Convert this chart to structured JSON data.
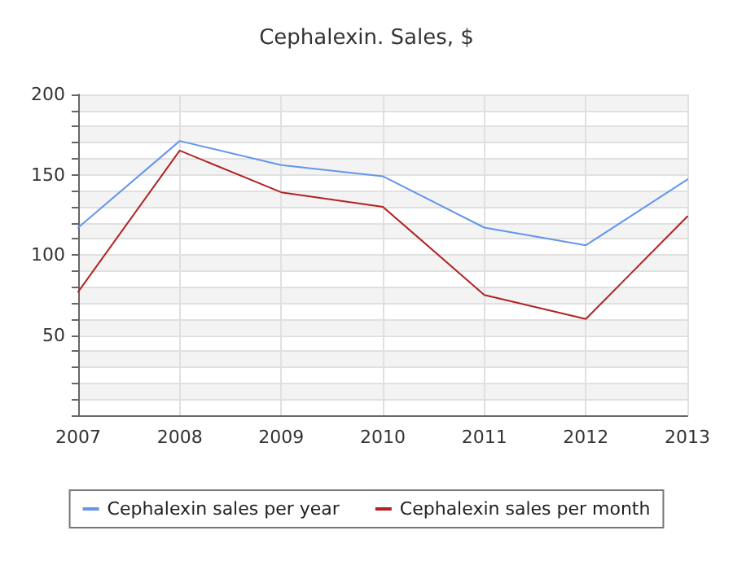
{
  "chart_data": {
    "type": "line",
    "title": "Cephalexin. Sales, $",
    "categories": [
      "2007",
      "2008",
      "2009",
      "2010",
      "2011",
      "2012",
      "2013"
    ],
    "series": [
      {
        "name": "Cephalexin sales per year",
        "color": "#6495ed",
        "values": [
          117,
          171,
          156,
          149,
          117,
          106,
          147
        ]
      },
      {
        "name": "Cephalexin sales per month",
        "color": "#b22222",
        "values": [
          77,
          165,
          139,
          130,
          75,
          60,
          124
        ]
      }
    ],
    "ylim": [
      0,
      200
    ],
    "yticks": [
      {
        "value": 0,
        "label": null
      },
      {
        "value": 10,
        "label": null
      },
      {
        "value": 20,
        "label": null
      },
      {
        "value": 30,
        "label": null
      },
      {
        "value": 40,
        "label": null
      },
      50,
      {
        "value": 60,
        "label": null
      },
      {
        "value": 70,
        "label": null
      },
      {
        "value": 80,
        "label": null
      },
      {
        "value": 90,
        "label": null
      },
      100,
      {
        "value": 110,
        "label": null
      },
      {
        "value": 120,
        "label": null
      },
      {
        "value": 130,
        "label": null
      },
      {
        "value": 140,
        "label": null
      },
      150,
      {
        "value": 160,
        "label": null
      },
      {
        "value": 170,
        "label": null
      },
      {
        "value": 180,
        "label": null
      },
      {
        "value": 190,
        "label": null
      },
      200
    ],
    "grid": true,
    "legend": "bottom",
    "marker": "none",
    "line_style": "solid"
  }
}
